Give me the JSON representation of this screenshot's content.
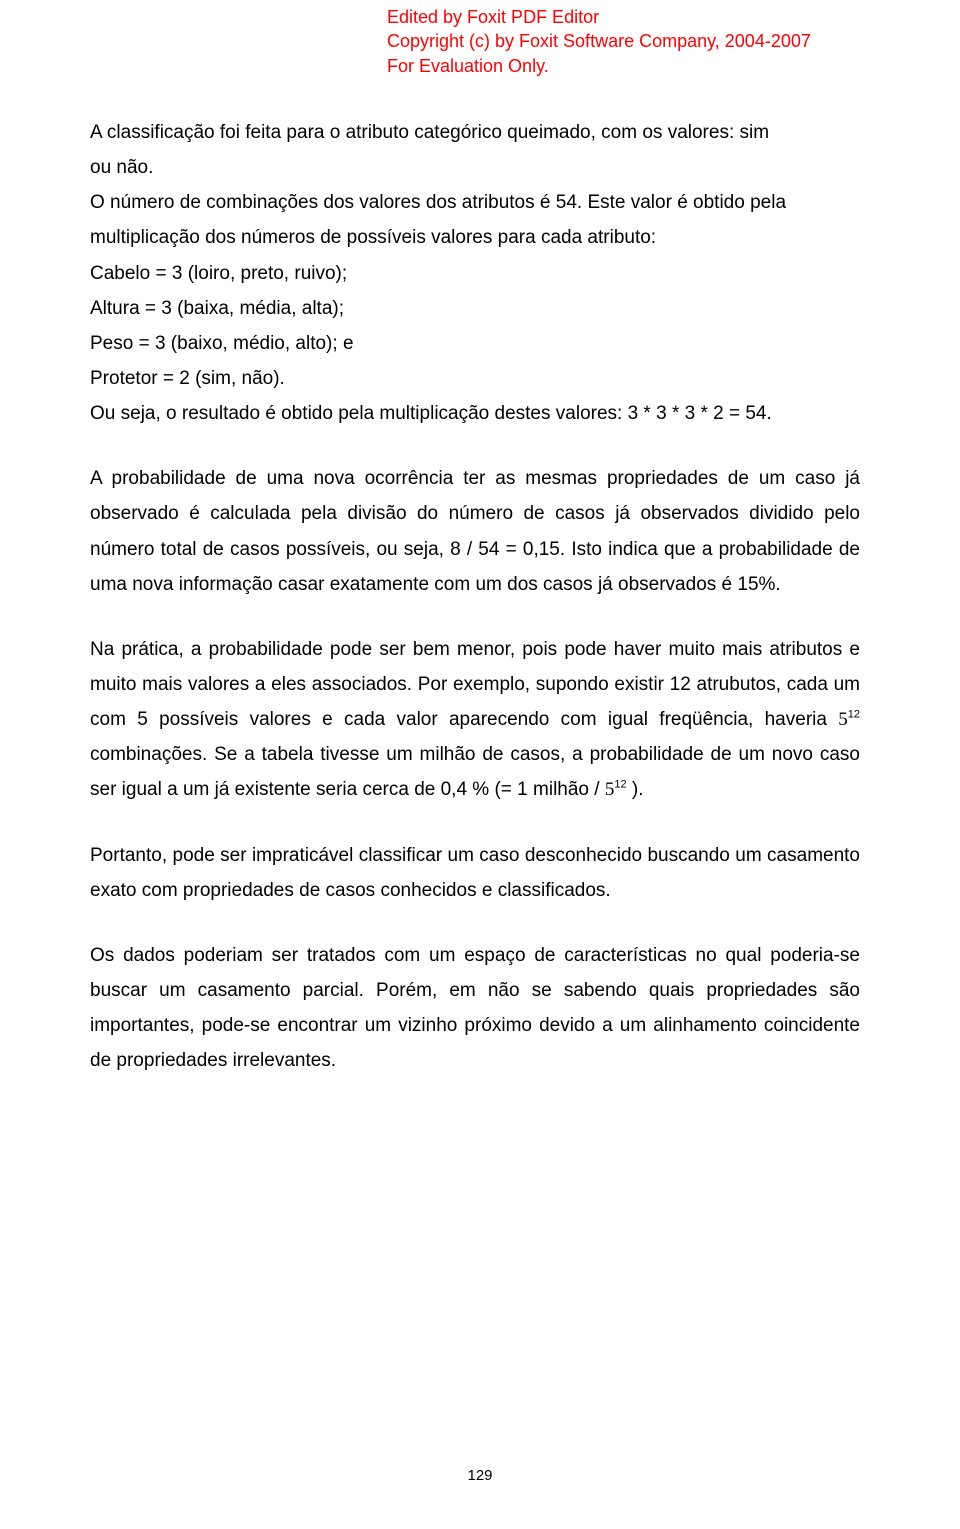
{
  "watermark": {
    "line1": "Edited by Foxit PDF Editor",
    "line2": "Copyright (c) by Foxit Software Company, 2004-2007",
    "line3": "For Evaluation Only.",
    "color": "#ff0000",
    "fontSize": 18
  },
  "body": {
    "fontSize": 19,
    "color": "#000000",
    "backgroundColor": "#ffffff",
    "lineHeight": 1.85
  },
  "paragraphs": {
    "p1_line1": "A classificação foi feita para o atributo categórico queimado, com os valores: sim",
    "p1_line2": "ou não.",
    "p1_line3": "O número de combinações dos valores dos atributos é 54. Este valor é obtido pela",
    "p1_line4": "multiplicação dos números de possíveis valores para cada atributo:",
    "p1_line5": "Cabelo = 3 (loiro, preto, ruivo);",
    "p1_line6": "Altura = 3 (baixa, média, alta);",
    "p1_line7": "Peso = 3 (baixo, médio, alto); e",
    "p1_line8": "Protetor = 2 (sim, não).",
    "p1_line9": "Ou seja, o resultado é obtido pela multiplicação destes valores: 3 * 3 * 3 * 2 = 54.",
    "p2": "A probabilidade de uma nova ocorrência ter as mesmas propriedades de um caso já observado é calculada pela divisão do número de casos já observados dividido pelo número total de casos possíveis, ou seja, 8 / 54 = 0,15. Isto indica que a probabilidade de uma nova informação casar exatamente com um dos casos já observados é 15%.",
    "p3_part1": "Na prática, a probabilidade pode ser bem menor, pois pode haver muito mais atributos e muito mais valores a eles associados. Por exemplo, supondo existir 12 atrubutos, cada um com 5 possíveis valores e cada valor aparecendo com igual freqüência, haveria ",
    "p3_math1_base": "5",
    "p3_math1_exp": "12",
    "p3_part2": " combinações. Se a tabela tivesse um milhão de casos, a probabilidade de um novo caso ser igual a um já  existente  seria  cerca de  0,4 % (= 1 milhão / ",
    "p3_math2_base": "5",
    "p3_math2_exp": "12",
    "p3_part3": " ).",
    "p4": "Portanto, pode ser impraticável classificar um caso desconhecido buscando um casamento exato com propriedades de casos conhecidos e classificados.",
    "p5": "Os dados poderiam ser tratados com um espaço de características no qual poderia-se buscar um casamento parcial. Porém, em não se sabendo quais propriedades são importantes, pode-se encontrar um vizinho próximo devido a um alinhamento coincidente de propriedades irrelevantes."
  },
  "pageNumber": "129"
}
